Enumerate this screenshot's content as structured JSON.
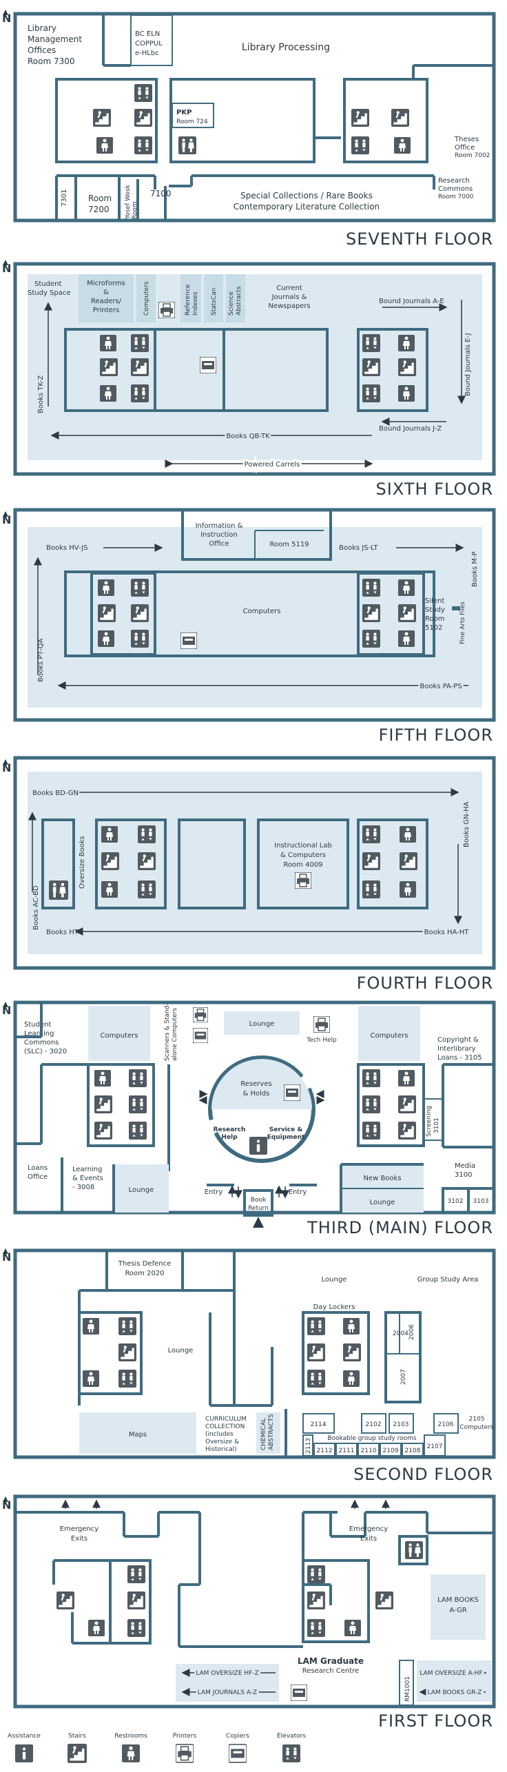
{
  "north": "N",
  "floors": {
    "seventh": {
      "title": "SEVENTH FLOOR",
      "labels": {
        "lmo1": "Library",
        "lmo2": "Management",
        "lmo3": "Offices",
        "lmo4": "Room 7300",
        "bc1": "BC ELN",
        "bc2": "COPPUL",
        "bc3": "e-HLbc",
        "processing": "Library Processing",
        "pkp1": "PKP",
        "pkp2": "Room 724",
        "theses1": "Theses",
        "theses2": "Office",
        "theses3": "Room 7002",
        "r7301": "7301",
        "room7200a": "Room",
        "room7200b": "7200",
        "yosef1": "Yosef Wosk",
        "yosef2": "Room",
        "r7100": "7100",
        "special1": "Special Collections / Rare Books",
        "special2": "Contemporary Literature Collection",
        "research1": "Research",
        "research2": "Commons",
        "research3": "Room 7000"
      }
    },
    "sixth": {
      "title": "SIXTH FLOOR",
      "labels": {
        "student1": "Student",
        "student2": "Study Space",
        "micro1": "Microforms",
        "micro2": "&",
        "micro3": "Readers/",
        "micro4": "Printers",
        "computers": "Computers",
        "ref1": "Reference",
        "ref2": "Indexes",
        "statscan": "StatsCan",
        "sci1": "Science",
        "sci2": "Abstracts",
        "cur1": "Current",
        "cur2": "Journals &",
        "cur3": "Newspapers",
        "bjae": "Bound Journals A-E",
        "bjej": "Bound Journals E-J",
        "bjjz": "Bound Journals J-Z",
        "tkz": "Books TK-Z",
        "qbtk": "Books QB-TK",
        "carrels": "Powered Carrels"
      }
    },
    "fifth": {
      "title": "FIFTH FLOOR",
      "labels": {
        "info1": "Information &",
        "info2": "Instruction",
        "info3": "Office",
        "r5119": "Room 5119",
        "hvjs": "Books HV-JS",
        "jslt": "Books JS-LT",
        "mp": "Books M-P",
        "computers": "Computers",
        "silent1": "Silent",
        "silent2": "Study",
        "silent3": "Room",
        "silent4": "5102",
        "finearts": "Fine Arts Files",
        "ptqa": "Books PT-QA",
        "paps": "Books PA-PS"
      }
    },
    "fourth": {
      "title": "FOURTH FLOOR",
      "labels": {
        "bdgn": "Books BD-GN",
        "gnha": "Books GN-HA",
        "oversize": "Oversize Books",
        "acbd": "Books AC-BD",
        "lab1": "Instructional Lab",
        "lab2": "& Computers",
        "lab3": "Room 4009",
        "ht": "Books HT",
        "haht": "Books HA-HT"
      }
    },
    "third": {
      "title": "THIRD (MAIN) FLOOR",
      "labels": {
        "slc1": "Student",
        "slc2": "Learning",
        "slc3": "Commons",
        "slc4": "(SLC) - 3020",
        "computers_l": "Computers",
        "scanners1": "Scanners & Stand-",
        "scanners2": "alone Computers",
        "lounge_top": "Lounge",
        "techhelp": "Tech Help",
        "computers_r": "Computers",
        "copy1": "Copyright &",
        "copy2": "Interlibrary",
        "copy3": "Loans - 3105",
        "reserves1": "Reserves",
        "reserves2": "& Holds",
        "research1": "Research",
        "research2": "Help",
        "service1": "Service &",
        "service2": "Equipment",
        "screening1": "Screening",
        "screening2": "3101",
        "media1": "Media",
        "media2": "3100",
        "loans1": "Loans",
        "loans2": "Office",
        "le1": "Learning",
        "le2": "& Events",
        "le3": "- 3008",
        "lounge_l": "Lounge",
        "newbooks": "New Books",
        "lounge_r": "Lounge",
        "entry_l": "Entry",
        "entry_r": "Entry",
        "bookreturn1": "Book",
        "bookreturn2": "Return",
        "r3102": "3102",
        "r3103": "3103"
      }
    },
    "second": {
      "title": "SECOND FLOOR",
      "labels": {
        "thesis1": "Thesis Defence",
        "thesis2": "Room 2020",
        "lounge_top": "Lounge",
        "gsa": "Group Study Area",
        "lockers": "Day Lockers",
        "lounge_mid": "Lounge",
        "r2004": "2004",
        "r2006": "2006",
        "r2007": "2007",
        "maps": "Maps",
        "cur1": "CURRICULUM",
        "cur2": "COLLECTION",
        "cur3": "(includes",
        "cur4": "Oversize &",
        "cur5": "Historical)",
        "chem1": "CHEMICAL",
        "chem2": "ABSTRACTS",
        "r2114": "2114",
        "r2102": "2102",
        "r2103": "2103",
        "r2106": "2106",
        "r2105": "2105",
        "computers": "Computers",
        "r2113": "2113",
        "r2112": "2112",
        "r2111": "2111",
        "r2110": "2110",
        "r2109": "2109",
        "r2108": "2108",
        "r2107": "2107",
        "bookable": "Bookable group study rooms"
      }
    },
    "first": {
      "title": "FIRST FLOOR",
      "labels": {
        "emerg_l1": "Emergency",
        "emerg_l2": "Exits",
        "emerg_r1": "Emergency",
        "emerg_r2": "Exits",
        "lam1": "LAM BOOKS",
        "lam2": "A-GR",
        "lamgrad1": "LAM Graduate",
        "lamgrad2": "Research Centre",
        "lamover": "LAM OVERSIZE HF-Z",
        "lamjour": "LAM JOURNALS A-Z",
        "rm1001": "RM1001",
        "lamover_r": "LAM OVERSIZE A-HF",
        "lambooks_r": "LAM BOOKS GR-Z"
      }
    }
  },
  "legend": [
    {
      "label": "Assistance",
      "icon": "assistance-icon"
    },
    {
      "label": "Stairs",
      "icon": "stairs-icon"
    },
    {
      "label": "Restrooms",
      "icon": "restroom-icon"
    },
    {
      "label": "Printers",
      "icon": "printer-icon"
    },
    {
      "label": "Copiers",
      "icon": "copier-icon"
    },
    {
      "label": "Elevators",
      "icon": "elevator-icon"
    }
  ],
  "colors": {
    "wall": "#3f6b80",
    "room": "#dde9f0",
    "icon": "#505a60",
    "text": "#2b3a44"
  }
}
